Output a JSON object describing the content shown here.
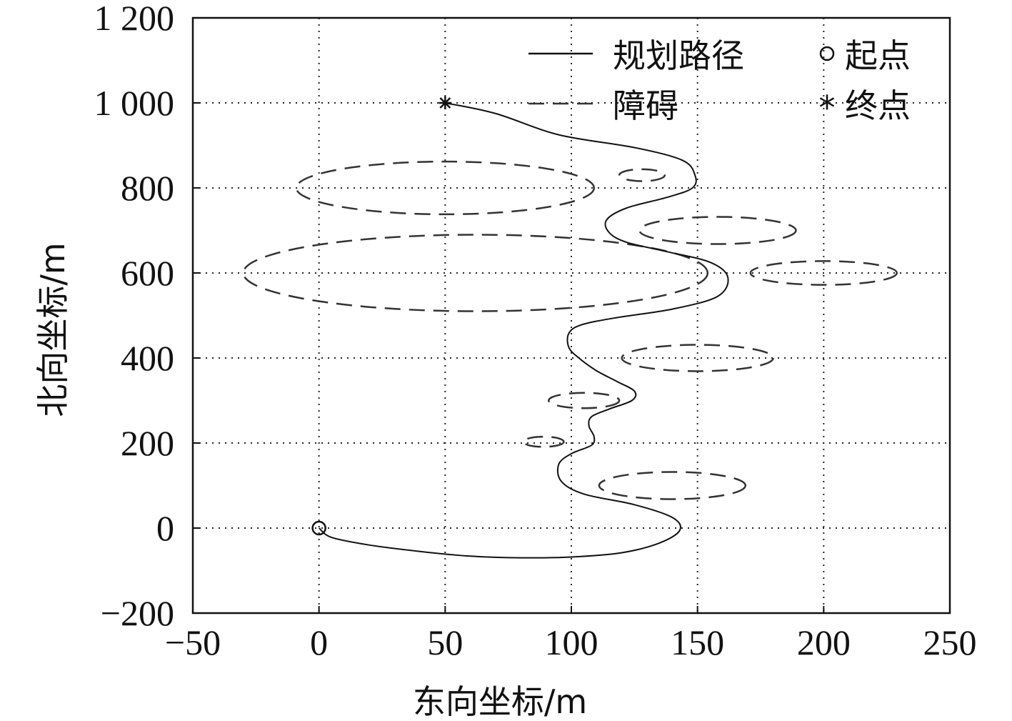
{
  "chart_data": {
    "type": "line",
    "xlabel": "东向坐标/m",
    "ylabel": "北向坐标/m",
    "xlim": [
      -50,
      250
    ],
    "ylim": [
      -200,
      1200
    ],
    "xticks": [
      -50,
      0,
      50,
      100,
      150,
      200,
      250
    ],
    "yticks": [
      -200,
      0,
      200,
      400,
      600,
      800,
      1000,
      1200
    ],
    "xtick_labels": [
      "−50",
      "0",
      "50",
      "100",
      "150",
      "200",
      "250"
    ],
    "ytick_labels": [
      "−200",
      "0",
      "200",
      "400",
      "600",
      "800",
      "1 000",
      "1 200"
    ],
    "grid": "dotted",
    "legend_position": "top-right",
    "legend": {
      "path": "规划路径",
      "obstacle": "障碍",
      "start": "起点",
      "end": "终点"
    },
    "start_point": {
      "x": 0,
      "y": 0
    },
    "end_point": {
      "x": 50,
      "y": 1000
    },
    "path": [
      [
        0,
        0
      ],
      [
        5,
        -22
      ],
      [
        20,
        -40
      ],
      [
        40,
        -55
      ],
      [
        60,
        -66
      ],
      [
        80,
        -70
      ],
      [
        100,
        -68
      ],
      [
        120,
        -58
      ],
      [
        135,
        -35
      ],
      [
        143,
        -5
      ],
      [
        140,
        25
      ],
      [
        125,
        55
      ],
      [
        105,
        80
      ],
      [
        96,
        110
      ],
      [
        95,
        150
      ],
      [
        100,
        175
      ],
      [
        108,
        195
      ],
      [
        109,
        215
      ],
      [
        107,
        240
      ],
      [
        108,
        262
      ],
      [
        115,
        280
      ],
      [
        124,
        300
      ],
      [
        125,
        322
      ],
      [
        118,
        345
      ],
      [
        110,
        370
      ],
      [
        103,
        400
      ],
      [
        99,
        425
      ],
      [
        99,
        458
      ],
      [
        104,
        478
      ],
      [
        118,
        495
      ],
      [
        140,
        515
      ],
      [
        158,
        545
      ],
      [
        162,
        590
      ],
      [
        155,
        625
      ],
      [
        138,
        650
      ],
      [
        122,
        672
      ],
      [
        115,
        695
      ],
      [
        114,
        725
      ],
      [
        122,
        753
      ],
      [
        138,
        778
      ],
      [
        148,
        800
      ],
      [
        149,
        830
      ],
      [
        144,
        865
      ],
      [
        125,
        895
      ],
      [
        95,
        925
      ],
      [
        70,
        975
      ],
      [
        50,
        1000
      ]
    ],
    "obstacles": [
      {
        "cx": 50,
        "cy": 800,
        "rx": 59,
        "ry": 62
      },
      {
        "cx": 128,
        "cy": 830,
        "rx": 9,
        "ry": 14
      },
      {
        "cx": 62,
        "cy": 600,
        "rx": 92,
        "ry": 90
      },
      {
        "cx": 158,
        "cy": 700,
        "rx": 31,
        "ry": 32
      },
      {
        "cx": 200,
        "cy": 600,
        "rx": 29,
        "ry": 28
      },
      {
        "cx": 150,
        "cy": 400,
        "rx": 30,
        "ry": 31
      },
      {
        "cx": 105,
        "cy": 300,
        "rx": 14,
        "ry": 18
      },
      {
        "cx": 89,
        "cy": 203,
        "rx": 8,
        "ry": 12
      },
      {
        "cx": 140,
        "cy": 100,
        "rx": 29,
        "ry": 32
      }
    ]
  }
}
